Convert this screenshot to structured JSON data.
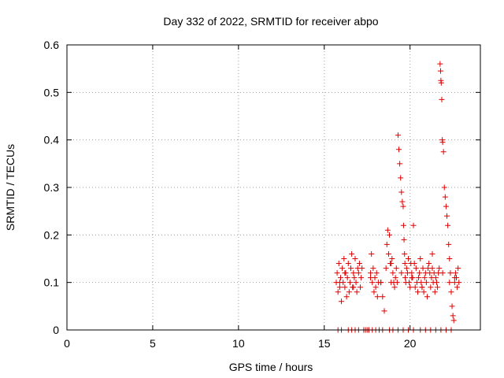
{
  "chart_data": {
    "type": "scatter",
    "title": "Day 332 of 2022, SRMTID for receiver abpo",
    "xlabel": "GPS time / hours",
    "ylabel": "SRMTID / TECUs",
    "xlim": [
      0,
      24.1
    ],
    "ylim": [
      0,
      0.6
    ],
    "xticks": [
      0,
      5,
      10,
      15,
      20
    ],
    "xtick_labels": [
      "0",
      "5",
      "10",
      "15",
      "20"
    ],
    "yticks": [
      0,
      0.1,
      0.2,
      0.3,
      0.4,
      0.5,
      0.6
    ],
    "ytick_labels": [
      "0",
      "0.1",
      "0.2",
      "0.3",
      "0.4",
      "0.5",
      "0.6"
    ],
    "grid": true,
    "marker": "plus",
    "series": [
      {
        "name": "SRMTID",
        "color": "#e00000",
        "x": [
          15.7,
          15.75,
          15.8,
          15.85,
          15.9,
          15.95,
          16.0,
          16.05,
          16.1,
          16.15,
          16.2,
          16.25,
          16.3,
          16.35,
          16.4,
          16.45,
          16.5,
          16.55,
          16.6,
          16.65,
          16.7,
          16.75,
          16.8,
          16.85,
          16.9,
          16.95,
          17.0,
          17.05,
          17.1,
          17.15,
          17.3,
          17.4,
          17.5,
          17.6,
          17.7,
          17.75,
          17.8,
          17.85,
          17.9,
          17.95,
          18.0,
          18.05,
          18.1,
          18.15,
          18.2,
          18.3,
          18.4,
          18.5,
          18.6,
          18.65,
          18.7,
          18.75,
          18.8,
          18.85,
          18.9,
          18.95,
          19.0,
          19.05,
          19.1,
          19.15,
          19.2,
          19.25,
          19.3,
          19.35,
          19.4,
          19.45,
          19.5,
          19.55,
          19.6,
          19.62,
          19.65,
          19.68,
          19.7,
          19.72,
          19.75,
          19.8,
          19.85,
          19.9,
          19.95,
          20.0,
          20.05,
          20.1,
          20.15,
          20.2,
          20.25,
          20.3,
          20.35,
          20.4,
          20.45,
          20.5,
          20.55,
          20.6,
          20.65,
          20.7,
          20.75,
          20.8,
          20.85,
          20.9,
          20.95,
          21.0,
          21.05,
          21.1,
          21.15,
          21.2,
          21.25,
          21.3,
          21.35,
          21.4,
          21.45,
          21.5,
          21.55,
          21.6,
          21.65,
          21.7,
          21.75,
          21.78,
          21.8,
          21.82,
          21.85,
          21.88,
          21.9,
          21.95,
          22.0,
          22.05,
          22.1,
          22.15,
          22.2,
          22.25,
          22.3,
          22.35,
          22.4,
          22.45,
          22.5,
          22.55,
          22.6,
          22.65,
          22.7,
          22.75,
          22.8,
          22.85,
          15.8,
          16.0,
          16.4,
          16.6,
          16.8,
          17.0,
          17.4,
          17.6,
          17.8,
          18.0,
          18.2,
          18.4,
          18.8,
          19.0,
          19.3,
          19.6,
          19.9,
          20.2,
          20.6,
          20.9,
          21.2,
          21.5,
          21.8,
          22.1,
          22.4,
          15.9,
          16.2,
          16.7,
          17.2,
          17.7,
          18.3,
          18.9,
          19.5,
          20.1,
          20.7,
          21.3,
          21.9,
          22.3,
          22.6
        ],
        "y": [
          0.1,
          0.12,
          0.08,
          0.14,
          0.09,
          0.11,
          0.06,
          0.13,
          0.1,
          0.15,
          0.09,
          0.12,
          0.07,
          0.11,
          0.14,
          0.08,
          0.1,
          0.13,
          0.16,
          0.09,
          0.12,
          0.11,
          0.15,
          0.1,
          0.08,
          0.13,
          0.12,
          0.14,
          0.09,
          0.11,
          0.0,
          0.0,
          0.0,
          0.0,
          0.12,
          0.16,
          0.1,
          0.13,
          0.08,
          0.11,
          0.09,
          0.12,
          0.07,
          0.1,
          0.0,
          0.1,
          0.07,
          0.04,
          0.13,
          0.18,
          0.21,
          0.16,
          0.2,
          0.14,
          0.1,
          0.15,
          0.12,
          0.1,
          0.09,
          0.11,
          0.13,
          0.1,
          0.41,
          0.38,
          0.35,
          0.32,
          0.29,
          0.27,
          0.26,
          0.22,
          0.19,
          0.16,
          0.14,
          0.11,
          0.1,
          0.13,
          0.12,
          0.15,
          0.1,
          0.09,
          0.14,
          0.12,
          0.11,
          0.22,
          0.14,
          0.09,
          0.13,
          0.1,
          0.08,
          0.11,
          0.12,
          0.15,
          0.1,
          0.09,
          0.13,
          0.08,
          0.11,
          0.12,
          0.1,
          0.07,
          0.13,
          0.14,
          0.12,
          0.09,
          0.11,
          0.16,
          0.1,
          0.12,
          0.08,
          0.11,
          0.1,
          0.09,
          0.12,
          0.13,
          0.56,
          0.545,
          0.525,
          0.52,
          0.485,
          0.4,
          0.395,
          0.375,
          0.3,
          0.28,
          0.26,
          0.24,
          0.22,
          0.18,
          0.15,
          0.12,
          0.08,
          0.05,
          0.03,
          0.02,
          0.1,
          0.12,
          0.11,
          0.09,
          0.13,
          0.1,
          0.0,
          0.0,
          0.0,
          0.0,
          0.0,
          0.0,
          0.0,
          0.0,
          0.0,
          0.0,
          0.0,
          0.0,
          0.0,
          0.0,
          0.0,
          0.0,
          0.0,
          0.0,
          0.0,
          0.0,
          0.0,
          0.0,
          0.0,
          0.0,
          0.0,
          0.1,
          0.12,
          0.09,
          0.13,
          0.11,
          0.1,
          0.14,
          0.12,
          0.11,
          0.09,
          0.13,
          0.12,
          0.1,
          0.11
        ]
      }
    ]
  }
}
